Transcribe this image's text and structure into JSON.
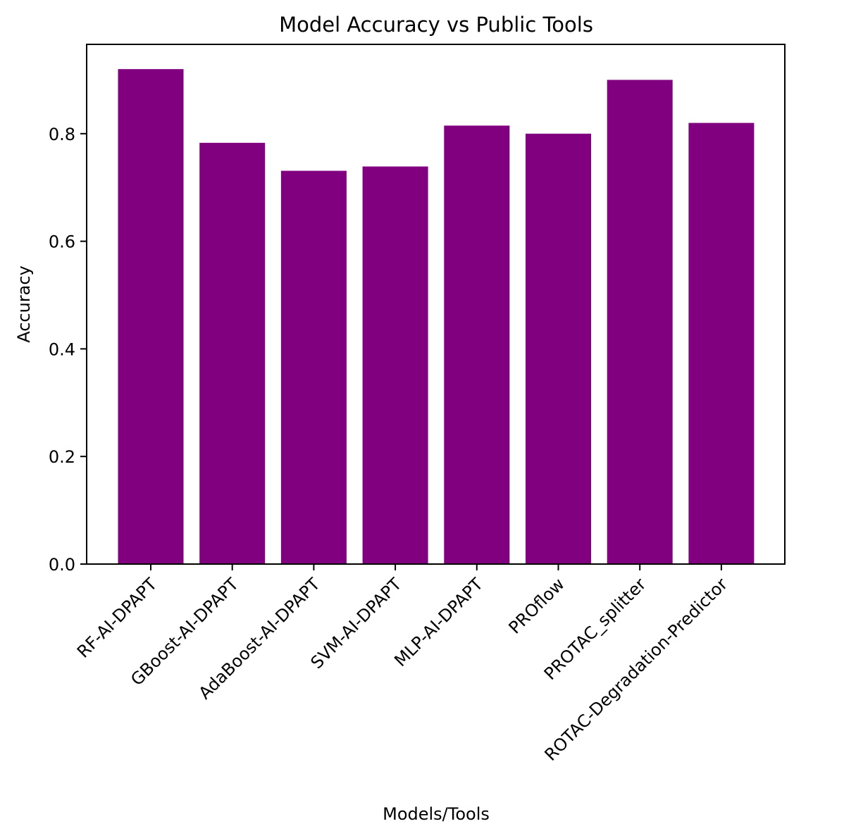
{
  "chart_data": {
    "type": "bar",
    "title": "Model Accuracy vs Public Tools",
    "xlabel": "Models/Tools",
    "ylabel": "Accuracy",
    "categories": [
      "RF-AI-DPAPT",
      "GBoost-AI-DPAPT",
      "AdaBoost-AI-DPAPT",
      "SVM-AI-DPAPT",
      "MLP-AI-DPAPT",
      "PROflow",
      "PROTAC_splitter",
      "ROTAC-Degradation-Predictor"
    ],
    "values": [
      0.92,
      0.783,
      0.731,
      0.739,
      0.815,
      0.8,
      0.9,
      0.82
    ],
    "ylim": [
      0,
      0.966
    ],
    "yticks": [
      0.0,
      0.2,
      0.4,
      0.6,
      0.8
    ],
    "ytick_labels": [
      "0.0",
      "0.2",
      "0.4",
      "0.6",
      "0.8"
    ],
    "bar_color": "#800080",
    "grid": false,
    "legend": "none"
  }
}
